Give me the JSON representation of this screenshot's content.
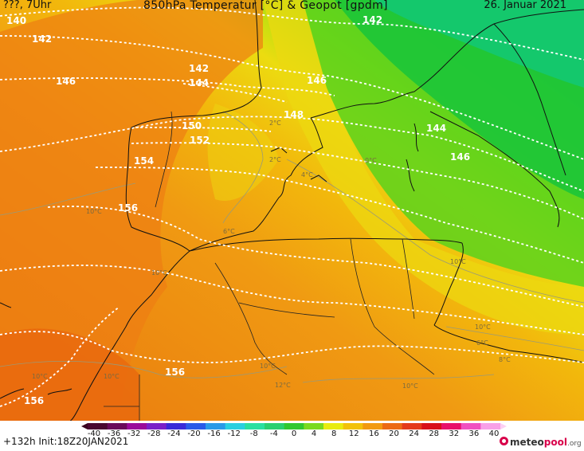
{
  "header": {
    "left": "???, 7Uhr",
    "title": "850hPa Temperatur [°C] & Geopot [gpdm]",
    "date": "26. Januar 2021"
  },
  "footer": {
    "run": "+132h  Init:18Z20JAN2021",
    "brand_main": "meteo",
    "brand_accent": "pool",
    "brand_tld": ".org"
  },
  "scale": {
    "labels": [
      "-40",
      "-36",
      "-32",
      "-28",
      "-24",
      "-20",
      "-16",
      "-12",
      "-8",
      "-4",
      "0",
      "4",
      "8",
      "12",
      "16",
      "20",
      "24",
      "28",
      "32",
      "36",
      "40"
    ],
    "colors": [
      "#4a0830",
      "#6a0a5a",
      "#9a0a9a",
      "#7a20c8",
      "#3a2ad8",
      "#2a5ae8",
      "#2a9ae8",
      "#2ad0e0",
      "#2ae0a0",
      "#2ad070",
      "#30c830",
      "#7ada20",
      "#e8ec10",
      "#f2c20a",
      "#f29a10",
      "#ec6a14",
      "#e43a1a",
      "#d8101a",
      "#e8106a",
      "#f050c0",
      "#f8a0e8"
    ]
  },
  "contours": {
    "labels": [
      "140",
      "142",
      "146",
      "142",
      "144",
      "146",
      "148",
      "150",
      "152",
      "154",
      "156",
      "142",
      "144",
      "146",
      "156",
      "156"
    ]
  },
  "isotherms": {
    "labels": [
      "10°C",
      "2°C",
      "2°C",
      "4°C",
      "0°C",
      "6°C",
      "10°C",
      "10°C",
      "10°C",
      "10°C",
      "12°C",
      "10°C",
      "6°C",
      "8°C",
      "10°C",
      "10°C"
    ]
  }
}
